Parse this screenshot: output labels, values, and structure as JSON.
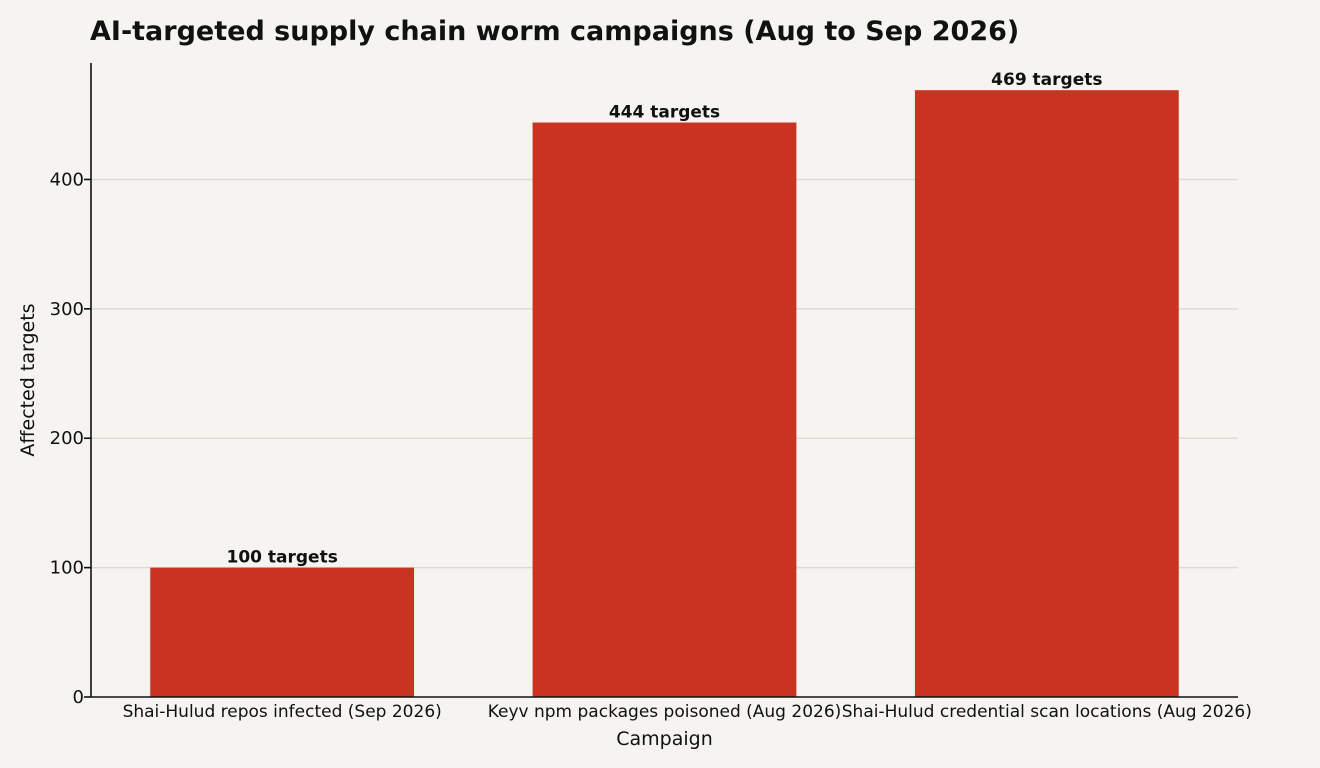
{
  "chart_data": {
    "type": "bar",
    "title": "AI-targeted supply chain worm campaigns (Aug to Sep 2026)",
    "xlabel": "Campaign",
    "ylabel": "Affected targets",
    "categories": [
      "Shai-Hulud repos infected (Sep 2026)",
      "Keyv npm packages poisoned (Aug 2026)",
      "Shai-Hulud credential scan locations (Aug 2026)"
    ],
    "values": [
      100,
      444,
      469
    ],
    "data_labels": [
      "100 targets",
      "444 targets",
      "469 targets"
    ],
    "ylim": [
      0,
      490
    ],
    "yticks": [
      0,
      100,
      200,
      300,
      400
    ],
    "grid": true,
    "bar_color": "#c93320"
  }
}
